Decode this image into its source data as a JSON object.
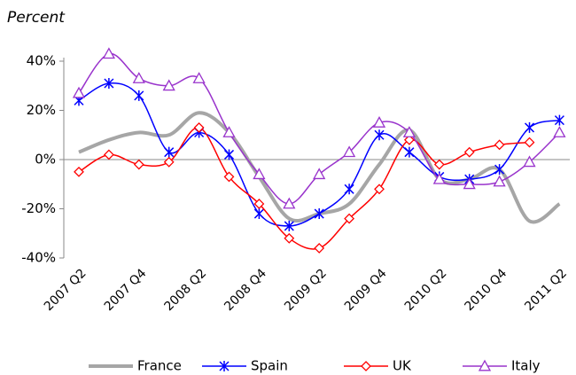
{
  "chart_data": {
    "type": "line",
    "title": "Percent",
    "categories": [
      "2007 Q2",
      null,
      "2007 Q4",
      null,
      "2008 Q2",
      null,
      "2008 Q4",
      null,
      "2009 Q2",
      null,
      "2009 Q4",
      null,
      "2010 Q2",
      null,
      "2010 Q4",
      null,
      "2011 Q2"
    ],
    "ylim": [
      -40,
      40
    ],
    "yticks": [
      {
        "value": -40,
        "label": "-40%"
      },
      {
        "value": -20,
        "label": "-20%"
      },
      {
        "value": 0,
        "label": "0%"
      },
      {
        "value": 20,
        "label": "20%"
      },
      {
        "value": 40,
        "label": "40%"
      }
    ],
    "legend": "bottom",
    "series": [
      {
        "name": "France",
        "color": "#a6a6a6",
        "marker": "none",
        "values": [
          3,
          8,
          11,
          10,
          19,
          11,
          -7,
          -24,
          -22,
          -18,
          -2,
          12,
          -8,
          -8,
          -4,
          -25,
          -18
        ]
      },
      {
        "name": "Spain",
        "color": "#0000ff",
        "marker": "star",
        "values": [
          24,
          31,
          26,
          3,
          11,
          2,
          -22,
          -27,
          -22,
          -12,
          10,
          3,
          -7,
          -8,
          -4,
          13,
          16
        ]
      },
      {
        "name": "UK",
        "color": "#ff0000",
        "marker": "diamond",
        "values": [
          -5,
          2,
          -2,
          -1,
          13,
          -7,
          -18,
          -32,
          -36,
          -24,
          -12,
          8,
          -2,
          3,
          6,
          7,
          null
        ]
      },
      {
        "name": "Italy",
        "color": "#9933cc",
        "marker": "triangle",
        "values": [
          27,
          43,
          33,
          30,
          33,
          11,
          -6,
          -18,
          -6,
          3,
          15,
          11,
          -8,
          -10,
          -9,
          -1,
          11
        ]
      }
    ]
  }
}
